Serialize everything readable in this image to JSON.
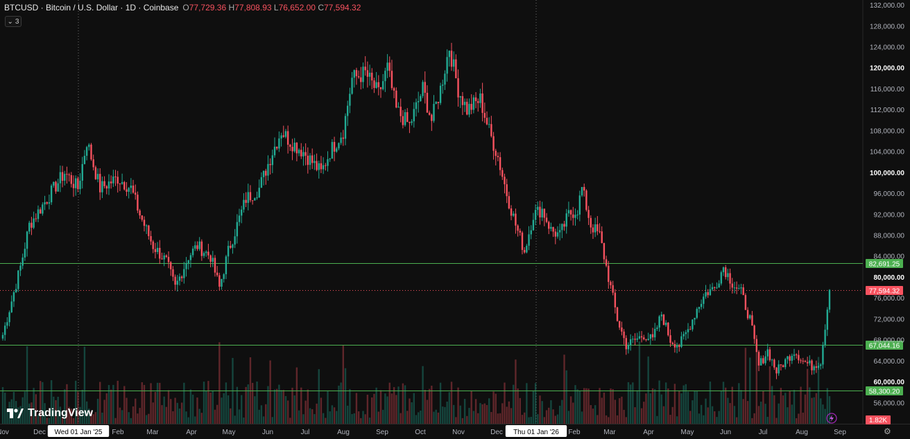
{
  "header": {
    "symbol": "BTCUSD · Bitcoin / U.S. Dollar · 1D · Coinbase",
    "o_label": "O",
    "o": "77,729.36",
    "h_label": "H",
    "h": "77,808.93",
    "l_label": "L",
    "l": "76,652.00",
    "c_label": "C",
    "c": "77,594.32"
  },
  "indicator_toggle": {
    "label": "3"
  },
  "brand": {
    "name": "TradingView"
  },
  "colors": {
    "up": "#22ab94",
    "down": "#f7525f",
    "line": "#4caf50",
    "bg": "#0f0f0f"
  },
  "chart_data": {
    "type": "candlestick",
    "symbol": "BTCUSD",
    "interval": "1D",
    "y_axis": {
      "min": 52000,
      "max": 133000,
      "ticks": [
        132000,
        128000,
        124000,
        120000,
        116000,
        112000,
        108000,
        104000,
        100000,
        96000,
        92000,
        88000,
        84000,
        80000,
        76000,
        72000,
        68000,
        64000,
        60000,
        56000
      ],
      "tick_labels": [
        "132,000.00",
        "128,000.00",
        "124,000.00",
        "120,000.00",
        "116,000.00",
        "112,000.00",
        "108,000.00",
        "104,000.00",
        "100,000.00",
        "96,000.00",
        "92,000.00",
        "88,000.00",
        "84,000.00",
        "80,000.00",
        "76,000.00",
        "72,000.00",
        "68,000.00",
        "64,000.00",
        "60,000.00",
        "56,000.00"
      ],
      "bold_ticks": [
        120000,
        100000,
        80000,
        60000
      ]
    },
    "x_axis": {
      "labels": [
        "Nov",
        "Dec",
        "Wed 01 Jan '25",
        "Feb",
        "Mar",
        "Apr",
        "May",
        "Jun",
        "Jul",
        "Aug",
        "Sep",
        "Oct",
        "Nov",
        "Dec",
        "Thu 01 Jan '26",
        "Feb",
        "Mar",
        "Apr",
        "May",
        "Jun",
        "Jul",
        "Aug",
        "Sep"
      ],
      "highlighted": [
        "Wed 01 Jan '25",
        "Thu 01 Jan '26"
      ]
    },
    "horizontal_lines": [
      {
        "price": 82691.25,
        "label": "82,691.25"
      },
      {
        "price": 67044.16,
        "label": "67,044.16"
      },
      {
        "price": 58300.2,
        "label": "58,300.20"
      }
    ],
    "last_price": {
      "price": 77594.32,
      "label": "77,594.32"
    },
    "volume_label": "1.82K",
    "anchors": [
      [
        0,
        69000
      ],
      [
        4,
        82000
      ],
      [
        6,
        90000
      ],
      [
        10,
        95000
      ],
      [
        14,
        100000
      ],
      [
        17,
        97000
      ],
      [
        19,
        106000
      ],
      [
        22,
        97000
      ],
      [
        26,
        99000
      ],
      [
        29,
        97000
      ],
      [
        31,
        92000
      ],
      [
        34,
        86000
      ],
      [
        37,
        83000
      ],
      [
        39,
        78000
      ],
      [
        42,
        84000
      ],
      [
        44,
        86000
      ],
      [
        47,
        84000
      ],
      [
        49,
        78000
      ],
      [
        51,
        85000
      ],
      [
        55,
        95000
      ],
      [
        58,
        97000
      ],
      [
        61,
        104000
      ],
      [
        63,
        108000
      ],
      [
        65,
        106000
      ],
      [
        68,
        104000
      ],
      [
        70,
        102000
      ],
      [
        72,
        100000
      ],
      [
        74,
        104000
      ],
      [
        77,
        108000
      ],
      [
        79,
        118000
      ],
      [
        82,
        119000
      ],
      [
        85,
        115000
      ],
      [
        87,
        120000
      ],
      [
        89,
        112000
      ],
      [
        92,
        109000
      ],
      [
        95,
        116000
      ],
      [
        97,
        110000
      ],
      [
        99,
        116000
      ],
      [
        101,
        124000
      ],
      [
        103,
        116000
      ],
      [
        105,
        112000
      ],
      [
        108,
        114000
      ],
      [
        110,
        108000
      ],
      [
        112,
        103000
      ],
      [
        114,
        96000
      ],
      [
        116,
        90000
      ],
      [
        118,
        85000
      ],
      [
        120,
        92000
      ],
      [
        122,
        93000
      ],
      [
        124,
        89000
      ],
      [
        126,
        88000
      ],
      [
        128,
        92000
      ],
      [
        130,
        93000
      ],
      [
        131,
        97000
      ],
      [
        133,
        90000
      ],
      [
        135,
        88000
      ],
      [
        137,
        80000
      ],
      [
        139,
        72000
      ],
      [
        141,
        67000
      ],
      [
        143,
        68000
      ],
      [
        145,
        69000
      ],
      [
        147,
        68000
      ],
      [
        149,
        73000
      ],
      [
        151,
        68000
      ],
      [
        153,
        67000
      ],
      [
        155,
        70000
      ],
      [
        157,
        74000
      ],
      [
        159,
        77000
      ],
      [
        161,
        78000
      ],
      [
        163,
        82000
      ],
      [
        165,
        79000
      ],
      [
        167,
        77000
      ],
      [
        169,
        72000
      ],
      [
        171,
        63000
      ],
      [
        173,
        66000
      ],
      [
        175,
        62000
      ],
      [
        177,
        64000
      ],
      [
        179,
        66000
      ],
      [
        181,
        64000
      ],
      [
        183,
        63000
      ],
      [
        185,
        64000
      ],
      [
        187,
        77594
      ]
    ],
    "anchor_x_max": 187
  }
}
